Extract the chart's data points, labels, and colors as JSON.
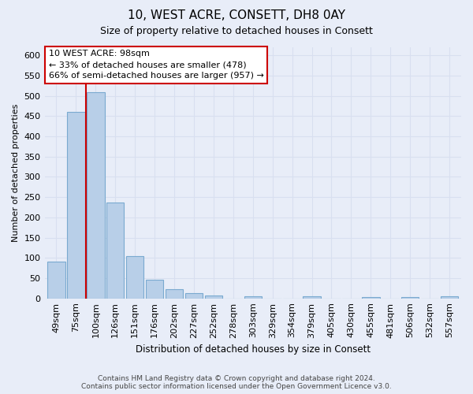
{
  "title": "10, WEST ACRE, CONSETT, DH8 0AY",
  "subtitle": "Size of property relative to detached houses in Consett",
  "xlabel": "Distribution of detached houses by size in Consett",
  "ylabel": "Number of detached properties",
  "categories": [
    "49sqm",
    "75sqm",
    "100sqm",
    "126sqm",
    "151sqm",
    "176sqm",
    "202sqm",
    "227sqm",
    "252sqm",
    "278sqm",
    "303sqm",
    "329sqm",
    "354sqm",
    "379sqm",
    "405sqm",
    "430sqm",
    "455sqm",
    "481sqm",
    "506sqm",
    "532sqm",
    "557sqm"
  ],
  "values": [
    90,
    460,
    510,
    237,
    105,
    47,
    22,
    13,
    8,
    0,
    5,
    0,
    0,
    5,
    0,
    0,
    4,
    0,
    4,
    0,
    5
  ],
  "bar_color": "#b8cfe8",
  "bar_edgecolor": "#7aaad0",
  "marker_index": 2,
  "marker_color": "#cc0000",
  "annotation_line1": "10 WEST ACRE: 98sqm",
  "annotation_line2": "← 33% of detached houses are smaller (478)",
  "annotation_line3": "66% of semi-detached houses are larger (957) →",
  "annotation_box_edgecolor": "#cc0000",
  "annotation_box_facecolor": "#ffffff",
  "ylim": [
    0,
    620
  ],
  "yticks": [
    0,
    50,
    100,
    150,
    200,
    250,
    300,
    350,
    400,
    450,
    500,
    550,
    600
  ],
  "background_color": "#e8edf8",
  "grid_color": "#d8dff0",
  "footer_text": "Contains HM Land Registry data © Crown copyright and database right 2024.\nContains public sector information licensed under the Open Government Licence v3.0."
}
